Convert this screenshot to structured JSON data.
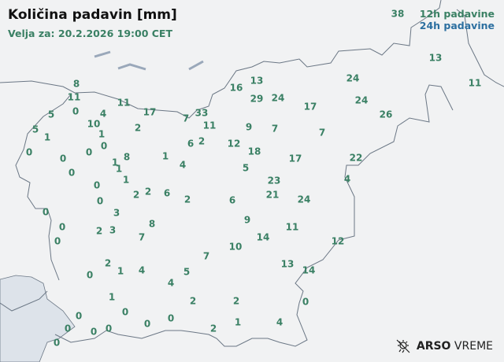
{
  "header": {
    "title": "Količina padavin [mm]",
    "valid_for": "Velja za: 20.2.2026 19:00 CET"
  },
  "legend": {
    "label_12h": "12h padavine",
    "label_24h": "24h padavine",
    "color_12h": "#3a8064",
    "color_24h": "#2c6fa0"
  },
  "brand": {
    "name_bold": "ARSO",
    "name_light": "VREME",
    "icon": "weather-logo-icon"
  },
  "values": [
    "38",
    "8",
    "11",
    "5",
    "0",
    "4",
    "11",
    "17",
    "2",
    "10",
    "1",
    "0",
    "5",
    "1",
    "0",
    "0",
    "0",
    "0",
    "1",
    "8",
    "1",
    "1",
    "0",
    "1",
    "4",
    "7",
    "33",
    "11",
    "6",
    "2",
    "12",
    "9",
    "16",
    "13",
    "29",
    "24",
    "17",
    "24",
    "24",
    "26",
    "13",
    "11",
    "7",
    "7",
    "18",
    "5",
    "17",
    "22",
    "4",
    "23",
    "21",
    "24",
    "6",
    "9",
    "11",
    "14",
    "10",
    "12",
    "13",
    "14",
    "0",
    "2",
    "1",
    "4",
    "0",
    "0",
    "0",
    "0",
    "2",
    "2",
    "6",
    "2",
    "3",
    "8",
    "2",
    "3",
    "7",
    "2",
    "1",
    "4",
    "0",
    "5",
    "4",
    "7",
    "1",
    "0",
    "0",
    "0",
    "0",
    "0",
    "0",
    "0",
    "2",
    "2",
    "0"
  ]
}
